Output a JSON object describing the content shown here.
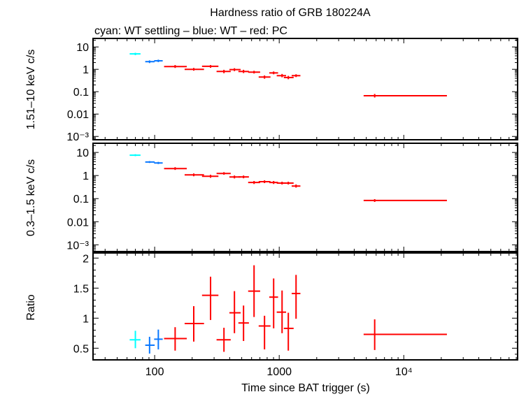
{
  "chart_data": {
    "type": "scatter",
    "title": "Hardness ratio of GRB 180224A",
    "subtitle": "cyan: WT settling – blue: WT – red: PC",
    "xlabel": "Time since BAT trigger (s)",
    "xscale": "log",
    "xlim": [
      32,
      82000
    ],
    "xticks": [
      {
        "v": 100,
        "label": "100"
      },
      {
        "v": 1000,
        "label": "1000"
      },
      {
        "v": 10000,
        "label": "10⁴"
      }
    ],
    "colors": {
      "WT settling": "#00ffff",
      "WT": "#0a78ff",
      "PC": "#ff0000"
    },
    "grid": false,
    "panels": [
      {
        "ylabel": "1.51–10 keV c/s",
        "yscale": "log",
        "ylim": [
          0.00071,
          24
        ],
        "yticks": [
          {
            "v": 10,
            "label": "10"
          },
          {
            "v": 1,
            "label": "1"
          },
          {
            "v": 0.1,
            "label": "0.1"
          },
          {
            "v": 0.01,
            "label": "0.01"
          },
          {
            "v": 0.001,
            "label": "10⁻³"
          }
        ],
        "series": [
          {
            "mode": "WT settling",
            "points": [
              [
                70,
                63,
                77,
                4.9,
                4.3,
                5.5
              ]
            ]
          },
          {
            "mode": "WT",
            "points": [
              [
                91,
                84,
                100,
                2.2,
                1.9,
                2.5
              ],
              [
                107,
                99,
                116,
                2.4,
                2.1,
                2.7
              ]
            ]
          },
          {
            "mode": "PC",
            "points": [
              [
                146,
                119,
                181,
                1.33,
                1.15,
                1.55
              ],
              [
                206,
                174,
                249,
                1.0,
                0.87,
                1.15
              ],
              [
                281,
                240,
                325,
                1.36,
                1.17,
                1.55
              ],
              [
                360,
                314,
                408,
                0.8,
                0.67,
                0.95
              ],
              [
                437,
                398,
                490,
                0.97,
                0.83,
                1.12
              ],
              [
                517,
                470,
                571,
                0.8,
                0.68,
                0.95
              ],
              [
                628,
                563,
                703,
                0.75,
                0.65,
                0.86
              ],
              [
                762,
                684,
                851,
                0.45,
                0.38,
                0.53
              ],
              [
                902,
                832,
                979,
                0.69,
                0.6,
                0.8
              ],
              [
                1054,
                955,
                1135,
                0.52,
                0.44,
                0.62
              ],
              [
                1183,
                1089,
                1305,
                0.43,
                0.36,
                0.51
              ],
              [
                1365,
                1259,
                1479,
                0.52,
                0.45,
                0.6
              ],
              [
                5840,
                4760,
                22200,
                0.066,
                0.055,
                0.079
              ]
            ]
          }
        ]
      },
      {
        "ylabel": "0.3–1.5 keV c/s",
        "yscale": "log",
        "ylim": [
          0.00051,
          25
        ],
        "yticks": [
          {
            "v": 10,
            "label": "10"
          },
          {
            "v": 1,
            "label": "1"
          },
          {
            "v": 0.1,
            "label": "0.1"
          },
          {
            "v": 0.01,
            "label": "0.01"
          },
          {
            "v": 0.001,
            "label": "10⁻³"
          }
        ],
        "series": [
          {
            "mode": "WT settling",
            "points": [
              [
                70,
                63,
                77,
                7.6,
                6.9,
                8.4
              ]
            ]
          },
          {
            "mode": "WT",
            "points": [
              [
                91,
                84,
                100,
                3.85,
                3.5,
                4.2
              ],
              [
                107,
                99,
                116,
                3.5,
                3.15,
                3.9
              ]
            ]
          },
          {
            "mode": "PC",
            "points": [
              [
                146,
                119,
                181,
                2.0,
                1.75,
                2.3
              ],
              [
                206,
                174,
                249,
                1.07,
                0.93,
                1.23
              ],
              [
                281,
                240,
                325,
                0.93,
                0.8,
                1.08
              ],
              [
                360,
                314,
                408,
                1.23,
                1.08,
                1.4
              ],
              [
                437,
                398,
                490,
                0.87,
                0.75,
                1.0
              ],
              [
                517,
                470,
                571,
                0.87,
                0.76,
                1.0
              ],
              [
                628,
                563,
                703,
                0.5,
                0.43,
                0.58
              ],
              [
                762,
                684,
                851,
                0.54,
                0.47,
                0.62
              ],
              [
                902,
                832,
                979,
                0.5,
                0.43,
                0.58
              ],
              [
                1054,
                955,
                1135,
                0.47,
                0.41,
                0.54
              ],
              [
                1183,
                1089,
                1305,
                0.47,
                0.41,
                0.54
              ],
              [
                1365,
                1259,
                1479,
                0.35,
                0.3,
                0.41
              ],
              [
                5840,
                4760,
                22200,
                0.083,
                0.072,
                0.095
              ]
            ]
          }
        ]
      },
      {
        "ylabel": "Ratio",
        "yscale": "linear",
        "ylim": [
          0.306,
          2.085
        ],
        "yticks": [
          {
            "v": 2,
            "label": "2"
          },
          {
            "v": 1.5,
            "label": "1.5"
          },
          {
            "v": 1,
            "label": "1"
          },
          {
            "v": 0.5,
            "label": "0.5"
          }
        ],
        "series": [
          {
            "mode": "WT settling",
            "points": [
              [
                70,
                63,
                77,
                0.64,
                0.5,
                0.79
              ]
            ]
          },
          {
            "mode": "WT",
            "points": [
              [
                91,
                84,
                100,
                0.55,
                0.41,
                0.69
              ],
              [
                107,
                99,
                116,
                0.65,
                0.48,
                0.81
              ]
            ]
          },
          {
            "mode": "PC",
            "points": [
              [
                146,
                119,
                181,
                0.66,
                0.46,
                0.85
              ],
              [
                206,
                174,
                249,
                0.91,
                0.61,
                1.2
              ],
              [
                281,
                240,
                325,
                1.38,
                0.97,
                1.69
              ],
              [
                360,
                314,
                408,
                0.64,
                0.44,
                0.84
              ],
              [
                437,
                398,
                490,
                1.09,
                0.75,
                1.45
              ],
              [
                517,
                470,
                571,
                0.92,
                0.62,
                1.21
              ],
              [
                628,
                563,
                703,
                1.45,
                1.02,
                1.88
              ],
              [
                762,
                684,
                851,
                0.87,
                0.48,
                1.04
              ],
              [
                902,
                832,
                979,
                1.35,
                0.83,
                1.66
              ],
              [
                1054,
                955,
                1135,
                1.1,
                0.75,
                1.46
              ],
              [
                1183,
                1089,
                1305,
                0.83,
                0.46,
                1.09
              ],
              [
                1365,
                1259,
                1479,
                1.41,
                0.99,
                1.72
              ],
              [
                5840,
                4760,
                22200,
                0.73,
                0.47,
                0.98
              ]
            ]
          }
        ]
      }
    ]
  }
}
